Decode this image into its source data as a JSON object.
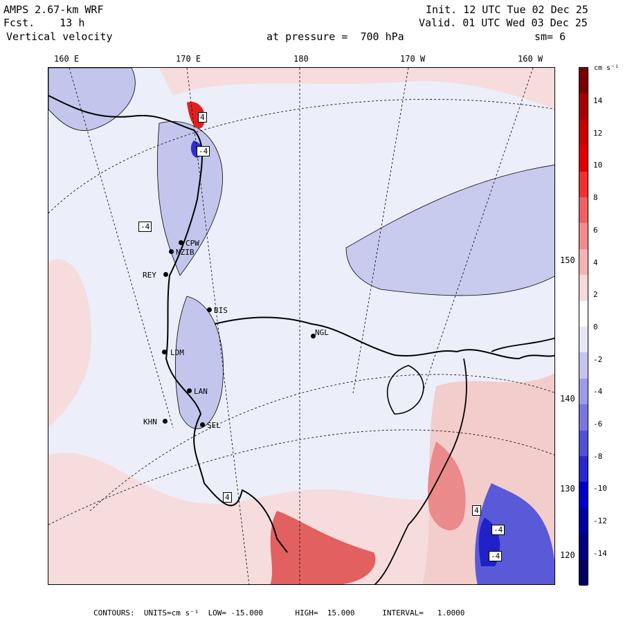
{
  "header": {
    "model": "AMPS 2.67-km WRF",
    "forecast": "Fcst.    13 h",
    "field": "Vertical velocity",
    "init": "Init. 12 UTC Tue 02 Dec 25",
    "valid": "Valid. 01 UTC Wed 03 Dec 25",
    "pressure": "at pressure =  700 hPa",
    "smoothing": "sm= 6"
  },
  "longitude_labels": [
    "160 E",
    "170 E",
    "180",
    "170 W",
    "160 W"
  ],
  "latitude_labels": [
    "150 W",
    "140 W",
    "130 W",
    "120 W"
  ],
  "stations": [
    {
      "code": "CPW",
      "marker": "dot"
    },
    {
      "code": "NZIB",
      "marker": "dot"
    },
    {
      "code": "REY",
      "marker": "dot"
    },
    {
      "code": "BIS",
      "marker": "dot"
    },
    {
      "code": "NGL",
      "marker": "dot"
    },
    {
      "code": "LDM",
      "marker": "dot"
    },
    {
      "code": "LAN",
      "marker": "dot"
    },
    {
      "code": "KHN",
      "marker": "dot"
    },
    {
      "code": "SEL",
      "marker": "dot"
    }
  ],
  "extrema_markers": [
    "4",
    "-4",
    "-4",
    "4",
    "4",
    "-4",
    "-4"
  ],
  "colorbar": {
    "unit_label": "cm s⁻¹",
    "ticks": [
      "14",
      "12",
      "10",
      "8",
      "6",
      "4",
      "2",
      "0",
      "-2",
      "-4",
      "-6",
      "-8",
      "-10",
      "-12",
      "-14"
    ],
    "colors": [
      "#7a0000",
      "#a80000",
      "#c80000",
      "#e00000",
      "#f03030",
      "#f06060",
      "#f08c8c",
      "#f4b4b4",
      "#f8d8d8",
      "#ffffff",
      "#e6e6f8",
      "#c4c4ee",
      "#9c9ce6",
      "#7878dc",
      "#5050d4",
      "#2828cc",
      "#0000c8",
      "#0000a0",
      "#000080",
      "#000060"
    ]
  },
  "footer": "CONTOURS:  UNITS=cm s⁻¹  LOW= -15.000       HIGH=  15.000      INTERVAL=   1.0000"
}
